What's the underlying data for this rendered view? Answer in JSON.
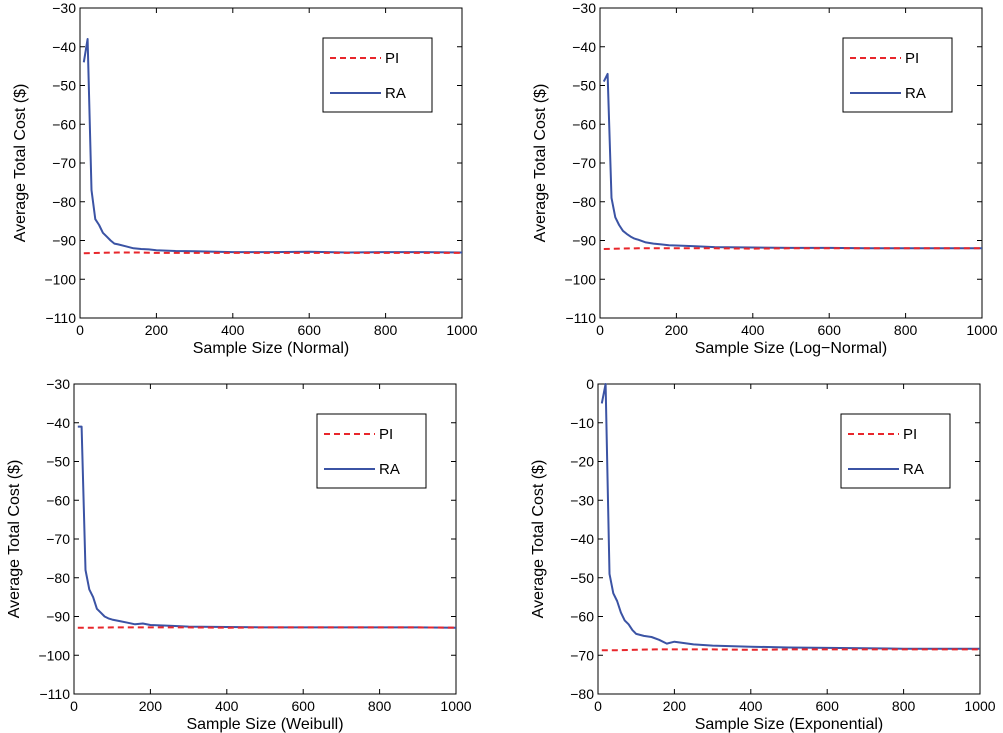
{
  "chart_data": [
    {
      "type": "line",
      "xlabel": "Sample Size (Normal)",
      "ylabel": "Average Total Cost ($)",
      "xlim": [
        0,
        1000
      ],
      "ylim": [
        -110,
        -30
      ],
      "xticks": [
        0,
        200,
        400,
        600,
        800,
        1000
      ],
      "yticks": [
        -110,
        -100,
        -90,
        -80,
        -70,
        -60,
        -50,
        -40,
        -30
      ],
      "grid": false,
      "legend": "top-right",
      "series": [
        {
          "name": "PI",
          "color": "#e8262b",
          "style": "dashed",
          "x": [
            10,
            50,
            100,
            150,
            200,
            300,
            400,
            500,
            600,
            700,
            800,
            900,
            1000
          ],
          "y": [
            -93.3,
            -93.2,
            -93.1,
            -93.1,
            -93.2,
            -93.2,
            -93.2,
            -93.2,
            -93.2,
            -93.2,
            -93.2,
            -93.2,
            -93.2
          ]
        },
        {
          "name": "RA",
          "color": "#3b53a4",
          "style": "solid",
          "x": [
            10,
            20,
            30,
            40,
            50,
            60,
            70,
            80,
            90,
            100,
            120,
            140,
            160,
            180,
            200,
            250,
            300,
            400,
            500,
            600,
            700,
            800,
            900,
            1000
          ],
          "y": [
            -44,
            -38,
            -77,
            -84.5,
            -86,
            -88,
            -89,
            -90,
            -90.8,
            -91,
            -91.5,
            -92,
            -92.2,
            -92.3,
            -92.5,
            -92.7,
            -92.8,
            -93,
            -93,
            -92.9,
            -93.1,
            -93,
            -93,
            -93.1
          ]
        }
      ]
    },
    {
      "type": "line",
      "xlabel": "Sample Size (Log−Normal)",
      "ylabel": "Average Total Cost ($)",
      "xlim": [
        0,
        1000
      ],
      "ylim": [
        -110,
        -30
      ],
      "xticks": [
        0,
        200,
        400,
        600,
        800,
        1000
      ],
      "yticks": [
        -110,
        -100,
        -90,
        -80,
        -70,
        -60,
        -50,
        -40,
        -30
      ],
      "grid": false,
      "legend": "top-right",
      "series": [
        {
          "name": "PI",
          "color": "#e8262b",
          "style": "dashed",
          "x": [
            10,
            50,
            100,
            150,
            200,
            300,
            400,
            500,
            600,
            700,
            800,
            900,
            1000
          ],
          "y": [
            -92.2,
            -92.1,
            -92,
            -92,
            -92,
            -92,
            -92.1,
            -92,
            -92,
            -92,
            -92,
            -92,
            -92
          ]
        },
        {
          "name": "RA",
          "color": "#3b53a4",
          "style": "solid",
          "x": [
            10,
            20,
            30,
            40,
            50,
            60,
            70,
            80,
            90,
            100,
            120,
            140,
            160,
            180,
            200,
            250,
            300,
            400,
            500,
            600,
            700,
            800,
            900,
            1000
          ],
          "y": [
            -49,
            -47,
            -79,
            -84,
            -86,
            -87.5,
            -88.3,
            -89,
            -89.5,
            -89.8,
            -90.5,
            -90.8,
            -91,
            -91.2,
            -91.3,
            -91.5,
            -91.7,
            -91.8,
            -91.9,
            -91.9,
            -92,
            -92,
            -92,
            -92
          ]
        }
      ]
    },
    {
      "type": "line",
      "xlabel": "Sample Size (Weibull)",
      "ylabel": "Average Total Cost ($)",
      "xlim": [
        0,
        1000
      ],
      "ylim": [
        -110,
        -30
      ],
      "xticks": [
        0,
        200,
        400,
        600,
        800,
        1000
      ],
      "yticks": [
        -110,
        -100,
        -90,
        -80,
        -70,
        -60,
        -50,
        -40,
        -30
      ],
      "grid": false,
      "legend": "top-right",
      "series": [
        {
          "name": "PI",
          "color": "#e8262b",
          "style": "dashed",
          "x": [
            10,
            50,
            100,
            150,
            200,
            300,
            400,
            500,
            600,
            700,
            800,
            900,
            1000
          ],
          "y": [
            -92.9,
            -92.9,
            -92.8,
            -92.8,
            -92.8,
            -92.8,
            -92.9,
            -92.8,
            -92.8,
            -92.8,
            -92.8,
            -92.8,
            -92.9
          ]
        },
        {
          "name": "RA",
          "color": "#3b53a4",
          "style": "solid",
          "x": [
            10,
            20,
            30,
            40,
            50,
            60,
            70,
            80,
            90,
            100,
            120,
            140,
            160,
            180,
            200,
            250,
            300,
            400,
            500,
            600,
            700,
            800,
            900,
            1000
          ],
          "y": [
            -41,
            -41,
            -78,
            -83,
            -85,
            -88,
            -89,
            -90,
            -90.5,
            -90.8,
            -91.2,
            -91.6,
            -92,
            -91.8,
            -92.2,
            -92.4,
            -92.6,
            -92.7,
            -92.8,
            -92.8,
            -92.8,
            -92.8,
            -92.8,
            -92.9
          ]
        }
      ]
    },
    {
      "type": "line",
      "xlabel": "Sample Size (Exponential)",
      "ylabel": "Average Total Cost ($)",
      "xlim": [
        0,
        1000
      ],
      "ylim": [
        -80,
        0
      ],
      "xticks": [
        0,
        200,
        400,
        600,
        800,
        1000
      ],
      "yticks": [
        -80,
        -70,
        -60,
        -50,
        -40,
        -30,
        -20,
        -10,
        0
      ],
      "grid": false,
      "legend": "top-right",
      "series": [
        {
          "name": "PI",
          "color": "#e8262b",
          "style": "dashed",
          "x": [
            10,
            50,
            100,
            150,
            200,
            300,
            400,
            500,
            600,
            700,
            800,
            900,
            1000
          ],
          "y": [
            -68.7,
            -68.7,
            -68.6,
            -68.5,
            -68.5,
            -68.5,
            -68.6,
            -68.5,
            -68.5,
            -68.5,
            -68.5,
            -68.5,
            -68.5
          ]
        },
        {
          "name": "RA",
          "color": "#3b53a4",
          "style": "solid",
          "x": [
            10,
            20,
            30,
            40,
            50,
            60,
            70,
            80,
            90,
            100,
            120,
            140,
            160,
            180,
            200,
            250,
            300,
            400,
            500,
            600,
            700,
            800,
            900,
            1000
          ],
          "y": [
            -5,
            0,
            -49,
            -54,
            -56,
            -59,
            -61,
            -62,
            -63.5,
            -64.5,
            -65,
            -65.3,
            -66,
            -67,
            -66.5,
            -67.2,
            -67.5,
            -67.8,
            -68,
            -68.1,
            -68.2,
            -68.3,
            -68.3,
            -68.3
          ]
        }
      ]
    }
  ]
}
